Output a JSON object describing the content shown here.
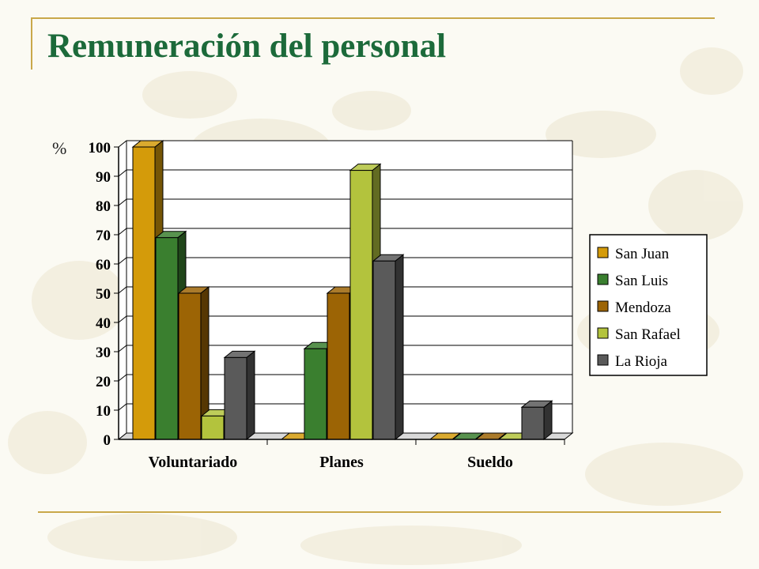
{
  "slide": {
    "title": "Remuneración del personal"
  },
  "colors": {
    "title": "#1c6a3a",
    "rule": "#c9a84a",
    "background": "#fbfaf3"
  },
  "chart_data": {
    "type": "bar",
    "title": "",
    "xlabel": "",
    "ylabel": "%",
    "ylim": [
      0,
      100
    ],
    "yticks": [
      0,
      10,
      20,
      30,
      40,
      50,
      60,
      70,
      80,
      90,
      100
    ],
    "grid": true,
    "legend_position": "right",
    "style": "3d-clustered",
    "categories": [
      "Voluntariado",
      "Planes",
      "Sueldo"
    ],
    "series": [
      {
        "name": "San Juan",
        "color": "#d49b0a",
        "values": [
          100,
          0,
          0
        ]
      },
      {
        "name": "San Luis",
        "color": "#3a7f2f",
        "values": [
          69,
          31,
          0
        ]
      },
      {
        "name": "Mendoza",
        "color": "#9c6405",
        "values": [
          50,
          50,
          0
        ]
      },
      {
        "name": "San Rafael",
        "color": "#b3c33d",
        "values": [
          8,
          92,
          0
        ]
      },
      {
        "name": "La Rioja",
        "color": "#5a5a5a",
        "values": [
          28,
          61,
          11
        ]
      }
    ]
  }
}
